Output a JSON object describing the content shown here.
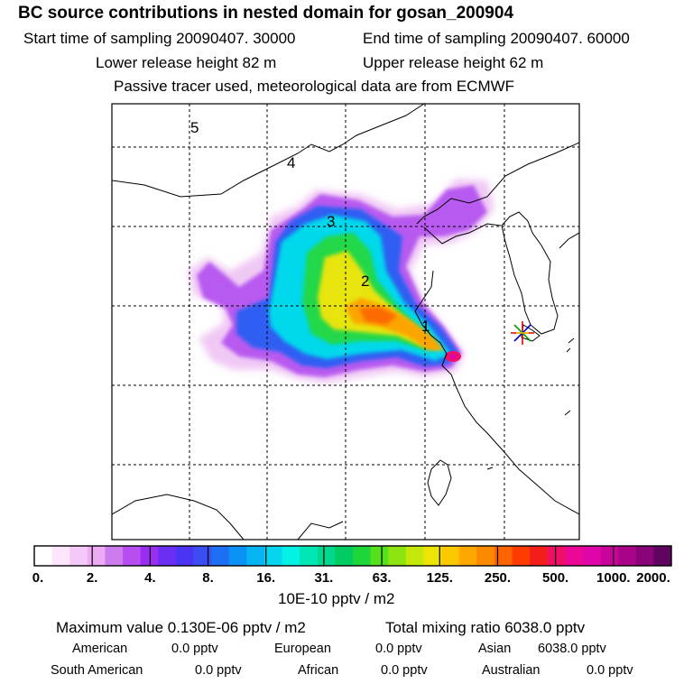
{
  "header": {
    "title": "BC  source contributions in nested domain for gosan_200904",
    "start_time": "Start time of sampling 20090407. 30000",
    "end_time": "End time of sampling 20090407. 60000",
    "lower_release": "Lower release height   82 m",
    "upper_release": "Upper release height   62 m",
    "tracer_note": "Passive tracer used, meteorological data are from ECMWF"
  },
  "map": {
    "region_labels": [
      "1",
      "2",
      "3",
      "4",
      "5"
    ],
    "receptor_marker": "star-marker"
  },
  "colorbar": {
    "tick_labels": [
      "0.",
      "2.",
      "4.",
      "8.",
      "16.",
      "31.",
      "63.",
      "125.",
      "250.",
      "500.",
      "1000.",
      "2000."
    ],
    "colors": [
      "#ffffff",
      "#fde6fc",
      "#f5c9f7",
      "#eeaaf2",
      "#cf7bf0",
      "#b84ef0",
      "#9a2df0",
      "#6a2ff2",
      "#4c35f2",
      "#3a4ef2",
      "#1e6ff4",
      "#0c92f4",
      "#05b4f2",
      "#05d6ee",
      "#02f3e6",
      "#00e7b6",
      "#00d88e",
      "#00cc62",
      "#1fd63a",
      "#55e01c",
      "#8ee410",
      "#c4e80a",
      "#ece407",
      "#fcc800",
      "#fca800",
      "#fc8a00",
      "#fc6400",
      "#fc3c00",
      "#f31e1a",
      "#ef0f66",
      "#ec0896",
      "#e005a8",
      "#c8049a",
      "#a80488",
      "#880478",
      "#600460"
    ],
    "units": "10E-10 pptv / m2"
  },
  "summary": {
    "maximum": "Maximum value  0.130E-06 pptv / m2",
    "total_mixing": "Total mixing ratio     6038.0 pptv",
    "american_label": "American",
    "american_value": "0.0 pptv",
    "european_label": "European",
    "european_value": "0.0 pptv",
    "asian_label": "Asian",
    "asian_value": "6038.0 pptv",
    "south_american_label": "South American",
    "south_american_value": "0.0 pptv",
    "african_label": "African",
    "african_value": "0.0 pptv",
    "australian_label": "Australian",
    "australian_value": "0.0 pptv"
  }
}
